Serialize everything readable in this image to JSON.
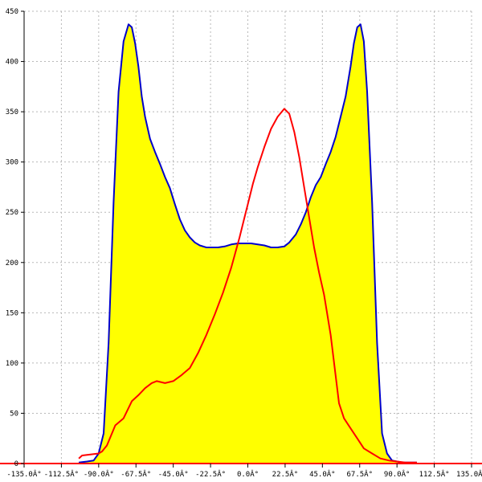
{
  "chart_data": {
    "type": "area",
    "title": "",
    "xlabel": "",
    "ylabel": "",
    "xlim": [
      -135,
      135
    ],
    "ylim": [
      0,
      450
    ],
    "grid": true,
    "legend": "none",
    "x_ticks": [
      -135,
      -112.5,
      -90,
      -67.5,
      -45,
      -22.5,
      0,
      22.5,
      45,
      67.5,
      90,
      112.5,
      135
    ],
    "x_tick_labels": [
      "-135.0Â°",
      "-112.5Â°",
      "-90.0Â°",
      "-67.5Â°",
      "-45.0Â°",
      "-22.5Â°",
      "0.0Â°",
      "22.5Â°",
      "45.0Â°",
      "67.5Â°",
      "90.0Â°",
      "112.5Â°",
      "135.0Â°"
    ],
    "y_ticks": [
      0,
      50,
      100,
      150,
      200,
      250,
      300,
      350,
      400,
      450
    ],
    "y_tick_labels": [
      "0",
      "50",
      "100",
      "150",
      "200",
      "250",
      "300",
      "350",
      "400",
      "450"
    ],
    "colors": {
      "fill": "#ffff00",
      "blue_line": "#0000cc",
      "red_line": "#ff0000",
      "axis": "#000000",
      "baseline": "#ff0000",
      "grid": "#b8b8b8"
    },
    "series": [
      {
        "color": "#0000cc",
        "filled": true,
        "x": [
          -102,
          -97,
          -93,
          -90,
          -87,
          -84,
          -81,
          -78,
          -75,
          -72,
          -70,
          -68,
          -66,
          -64,
          -62,
          -59,
          -56,
          -53,
          -50,
          -47,
          -44,
          -41,
          -38,
          -35,
          -32,
          -29,
          -25,
          -22,
          -18,
          -14,
          -10,
          -6,
          -2,
          2,
          6,
          10,
          14,
          18,
          22,
          25,
          29,
          32,
          35,
          38,
          41,
          44,
          47,
          50,
          53,
          56,
          59,
          62,
          64,
          66,
          68,
          70,
          72,
          75,
          78,
          81,
          84,
          87,
          90,
          93,
          97,
          102
        ],
        "y": [
          1,
          2,
          3,
          10,
          30,
          120,
          260,
          370,
          420,
          437,
          434,
          418,
          395,
          365,
          345,
          323,
          310,
          298,
          285,
          274,
          258,
          243,
          232,
          225,
          220,
          217,
          215,
          215,
          215,
          216,
          218,
          219,
          219,
          219,
          218,
          217,
          215,
          215,
          216,
          220,
          228,
          238,
          250,
          265,
          277,
          285,
          298,
          310,
          325,
          345,
          365,
          395,
          418,
          434,
          437,
          420,
          370,
          260,
          120,
          30,
          10,
          3,
          2,
          1,
          1,
          1
        ]
      },
      {
        "color": "#ff0000",
        "filled": false,
        "x": [
          -102,
          -100,
          -95,
          -90,
          -88,
          -85,
          -80,
          -75,
          -70,
          -66,
          -62,
          -58,
          -55,
          -50,
          -45,
          -40,
          -35,
          -30,
          -25,
          -20,
          -15,
          -10,
          -5,
          -2,
          0,
          3,
          6,
          10,
          14,
          18,
          22,
          25,
          28,
          31,
          34,
          37,
          40,
          43,
          46,
          50,
          55,
          58,
          62,
          66,
          70,
          75,
          80,
          85,
          90,
          95,
          100,
          102
        ],
        "y": [
          5,
          8,
          9,
          10,
          12,
          18,
          38,
          45,
          62,
          68,
          75,
          80,
          82,
          80,
          82,
          88,
          95,
          110,
          128,
          148,
          170,
          195,
          225,
          245,
          258,
          278,
          295,
          315,
          333,
          345,
          353,
          348,
          330,
          305,
          275,
          245,
          215,
          190,
          168,
          128,
          60,
          45,
          35,
          25,
          15,
          10,
          5,
          3,
          2,
          1,
          1,
          1
        ]
      }
    ]
  }
}
